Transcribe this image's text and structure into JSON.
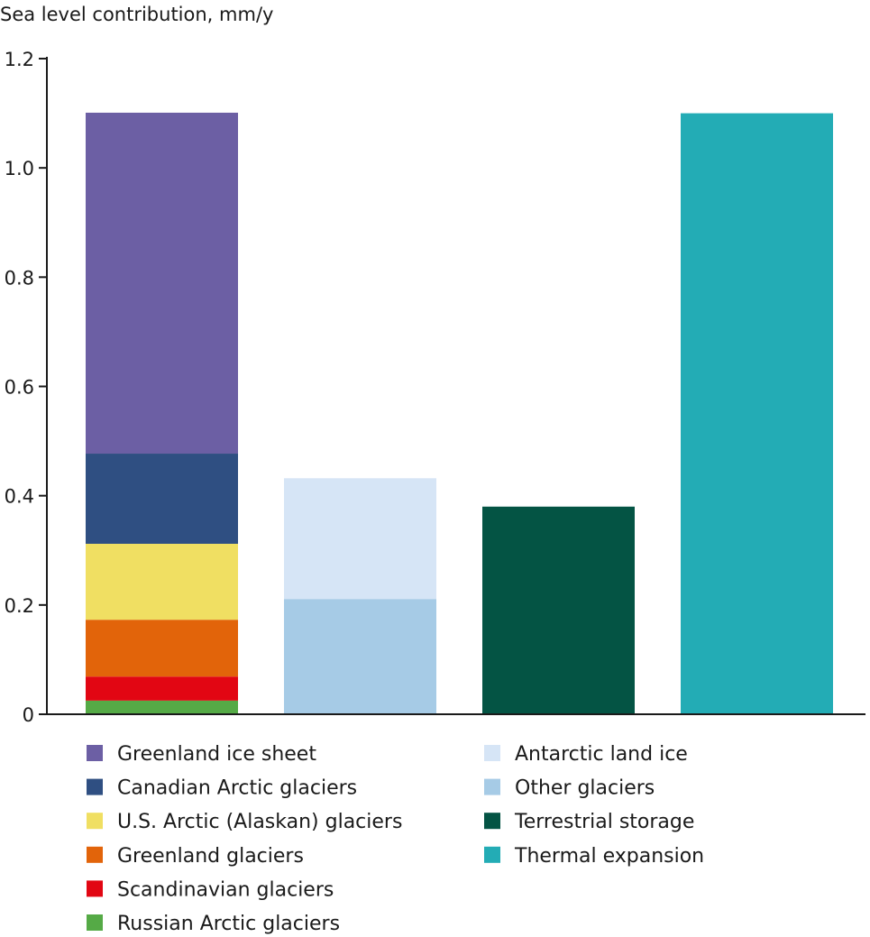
{
  "chart_data": {
    "type": "bar",
    "stacked": true,
    "title": "",
    "ylabel": "Sea level contribution, mm/y",
    "xlabel": "",
    "ylim": [
      0,
      1.2
    ],
    "yticks": [
      0,
      0.2,
      0.4,
      0.6,
      0.8,
      1.0,
      1.2
    ],
    "ytick_labels": [
      "0",
      "0.2",
      "0.4",
      "0.6",
      "0.8",
      "1.0",
      "1.2"
    ],
    "grid": false,
    "legend_placement": "bottom",
    "bars": [
      {
        "segments": [
          {
            "name": "Russian Arctic glaciers",
            "value": 0.025,
            "color": "#55aa46"
          },
          {
            "name": "Scandinavian glaciers",
            "value": 0.044,
            "color": "#e20613"
          },
          {
            "name": "Greenland glaciers",
            "value": 0.104,
            "color": "#e2640a"
          },
          {
            "name": "U.S. Arctic (Alaskan) glaciers",
            "value": 0.139,
            "color": "#f0df62"
          },
          {
            "name": "Canadian Arctic glaciers",
            "value": 0.165,
            "color": "#2f4f82"
          },
          {
            "name": "Greenland ice sheet",
            "value": 0.624,
            "color": "#6c5fa4"
          }
        ]
      },
      {
        "segments": [
          {
            "name": "Other glaciers",
            "value": 0.211,
            "color": "#a6cbe6"
          },
          {
            "name": "Antarctic land ice",
            "value": 0.221,
            "color": "#d6e5f6"
          }
        ]
      },
      {
        "segments": [
          {
            "name": "Terrestrial storage",
            "value": 0.38,
            "color": "#045444"
          }
        ]
      },
      {
        "segments": [
          {
            "name": "Thermal expansion",
            "value": 1.1,
            "color": "#23acb5"
          }
        ]
      }
    ],
    "legend": [
      [
        "Greenland ice sheet",
        "Canadian Arctic glaciers",
        "U.S. Arctic (Alaskan) glaciers",
        "Greenland glaciers",
        "Scandinavian glaciers",
        "Russian Arctic glaciers"
      ],
      [
        "Antarctic land ice",
        "Other glaciers",
        "Terrestrial storage",
        "Thermal expansion"
      ]
    ]
  }
}
